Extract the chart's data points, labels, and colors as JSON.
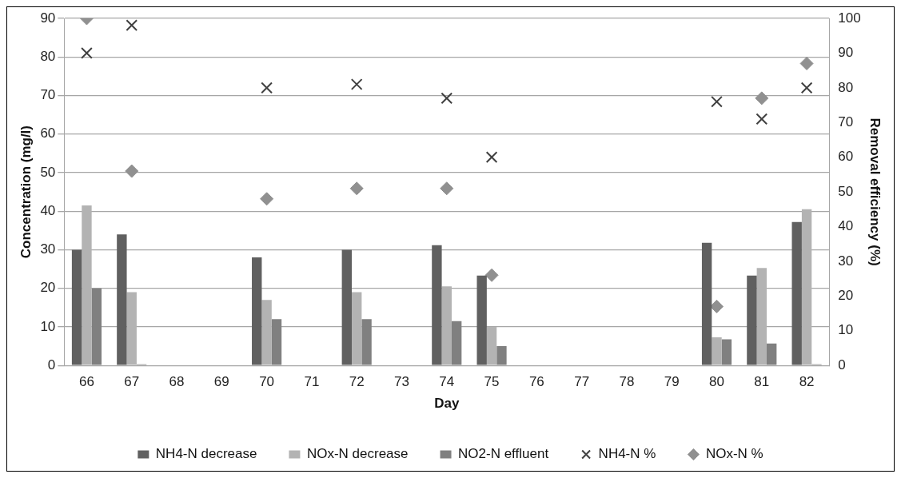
{
  "chart_data": {
    "type": "bar",
    "xlabel": "Day",
    "ylabel": "Concentration (mg/l)",
    "y2label": "Removal efficiency (%)",
    "categories": [
      "66",
      "67",
      "68",
      "69",
      "70",
      "71",
      "72",
      "73",
      "74",
      "75",
      "76",
      "77",
      "78",
      "79",
      "80",
      "81",
      "82"
    ],
    "series": [
      {
        "name": "NH4-N decrease",
        "color": "#606060",
        "values": [
          30,
          34,
          null,
          null,
          28,
          null,
          30,
          null,
          31.2,
          23.3,
          null,
          null,
          null,
          null,
          31.8,
          23.3,
          37.2
        ]
      },
      {
        "name": "NOx-N decrease",
        "color": "#b3b3b3",
        "values": [
          41.5,
          19,
          null,
          null,
          17,
          null,
          19,
          null,
          20.5,
          10,
          null,
          null,
          null,
          null,
          7.3,
          25.3,
          40.5
        ]
      },
      {
        "name": "NO2-N effluent",
        "color": "#808080",
        "values": [
          20,
          0.3,
          null,
          null,
          12,
          null,
          12,
          null,
          11.5,
          5,
          null,
          null,
          null,
          null,
          6.8,
          5.7,
          0.3
        ]
      },
      {
        "name": "NH4-N %",
        "type": "scatter",
        "axis": "y2",
        "marker": "cross",
        "color": "#404040",
        "values": [
          90,
          98,
          null,
          null,
          80,
          null,
          81,
          null,
          77,
          60,
          null,
          null,
          null,
          null,
          76,
          71,
          80
        ]
      },
      {
        "name": "NOx-N %",
        "type": "scatter",
        "axis": "y2",
        "marker": "diamond",
        "color": "#909090",
        "values": [
          100,
          56,
          null,
          null,
          48,
          null,
          51,
          null,
          51,
          26,
          null,
          null,
          null,
          null,
          17,
          77,
          87
        ]
      }
    ],
    "ylim": [
      0,
      90
    ],
    "yticks": [
      0,
      10,
      20,
      30,
      40,
      50,
      60,
      70,
      80,
      90
    ],
    "y2lim": [
      0,
      100
    ],
    "y2ticks": [
      0,
      10,
      20,
      30,
      40,
      50,
      60,
      70,
      80,
      90,
      100
    ],
    "grid": "y",
    "legend": "bottom"
  }
}
